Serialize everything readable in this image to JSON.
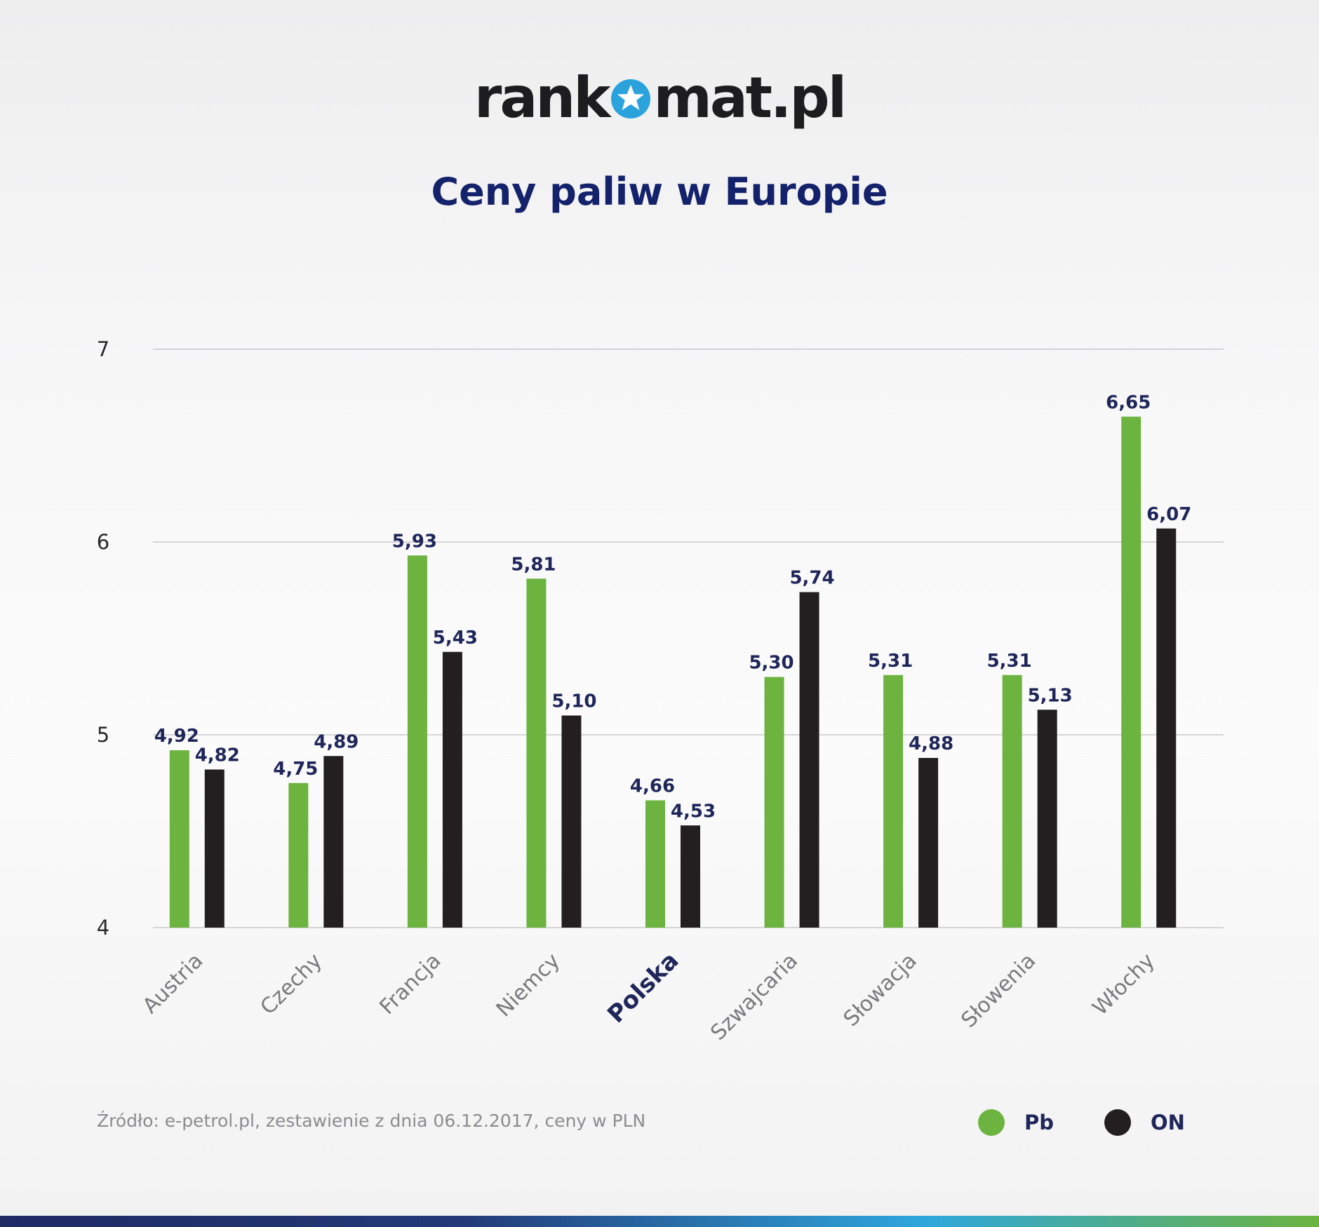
{
  "logo": {
    "pre": "rank",
    "post": "mat.pl"
  },
  "colors": {
    "pb": "#6cb33f",
    "on": "#231f20",
    "title": "#14216b",
    "label": "#1f2659",
    "grid": "#c9c9cc",
    "tick": "#2a2a2a",
    "category": "#7a7a7d",
    "highlight_category": "#1f2659"
  },
  "chart_data": {
    "type": "bar",
    "title": "Ceny paliw w Europie",
    "xlabel": "",
    "ylabel": "",
    "ylim": [
      4,
      7
    ],
    "yticks": [
      "4",
      "5",
      "6",
      "7"
    ],
    "grid": true,
    "legend_position": "bottom-right",
    "categories": [
      "Austria",
      "Czechy",
      "Francja",
      "Niemcy",
      "Polska",
      "Szwajcaria",
      "Słowacja",
      "Słowenia",
      "Włochy"
    ],
    "highlight_category": "Polska",
    "series": [
      {
        "name": "Pb",
        "values": [
          4.92,
          4.75,
          5.93,
          5.81,
          4.66,
          5.3,
          5.31,
          5.31,
          6.65
        ],
        "labels": [
          "4,92",
          "4,75",
          "5,93",
          "5,81",
          "4,66",
          "5,30",
          "5,31",
          "5,31",
          "6,65"
        ]
      },
      {
        "name": "ON",
        "values": [
          4.82,
          4.89,
          5.43,
          5.1,
          4.53,
          5.74,
          4.88,
          5.13,
          6.07
        ],
        "labels": [
          "4,82",
          "4,89",
          "5,43",
          "5,10",
          "4,53",
          "5,74",
          "4,88",
          "5,13",
          "6,07"
        ]
      }
    ],
    "source": "Źródło: e-petrol.pl, zestawienie z dnia 06.12.2017, ceny w PLN"
  }
}
